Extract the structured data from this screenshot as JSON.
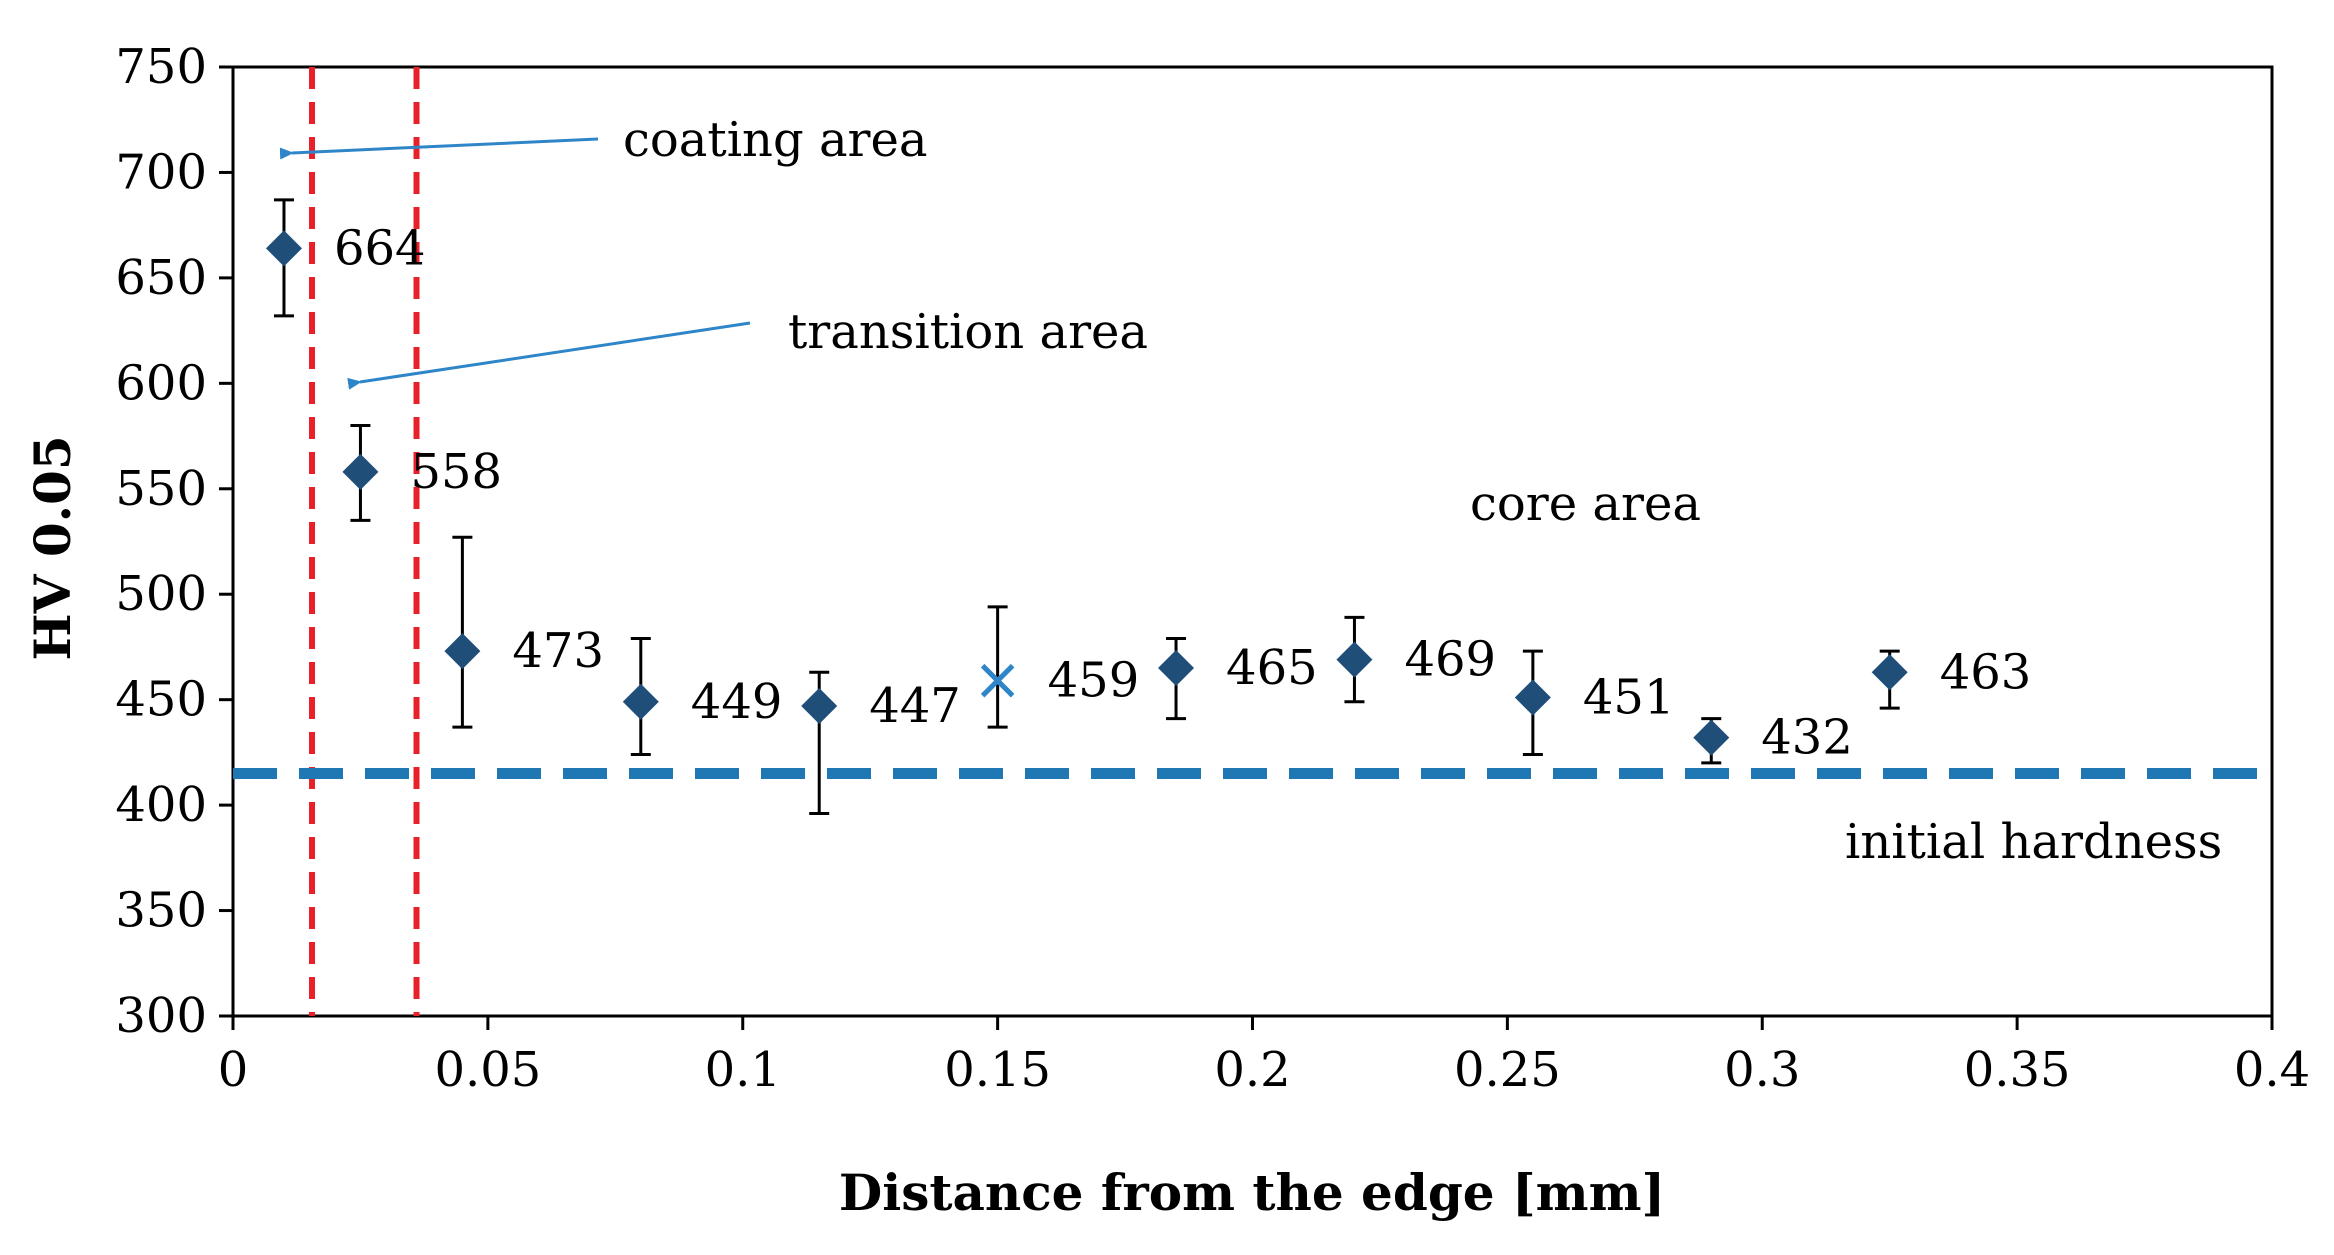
{
  "chart_data": {
    "type": "scatter",
    "xlabel": "Distance from the edge [mm]",
    "ylabel": "HV 0.05",
    "xlim": [
      0,
      0.4
    ],
    "ylim": [
      300,
      750
    ],
    "x_ticks": [
      0,
      0.05,
      0.1,
      0.15,
      0.2,
      0.25,
      0.3,
      0.35,
      0.4
    ],
    "x_tick_labels": [
      "0",
      "0.05",
      "0.1",
      "0.15",
      "0.2",
      "0.25",
      "0.3",
      "0.35",
      "0.4"
    ],
    "y_ticks": [
      300,
      350,
      400,
      450,
      500,
      550,
      600,
      650,
      700,
      750
    ],
    "y_tick_labels": [
      "300",
      "350",
      "400",
      "450",
      "500",
      "550",
      "600",
      "650",
      "700",
      "750"
    ],
    "grid": false,
    "series": [
      {
        "name": "HV 0.05",
        "marker": "diamond",
        "color": "#1F4E79",
        "points": [
          {
            "x": 0.01,
            "y": 664,
            "low": 632,
            "high": 687,
            "label": "664"
          },
          {
            "x": 0.025,
            "y": 558,
            "low": 535,
            "high": 580,
            "label": "558"
          },
          {
            "x": 0.045,
            "y": 473,
            "low": 437,
            "high": 527,
            "label": "473"
          },
          {
            "x": 0.08,
            "y": 449,
            "low": 424,
            "high": 479,
            "label": "449"
          },
          {
            "x": 0.115,
            "y": 447,
            "low": 396,
            "high": 463,
            "label": "447"
          },
          {
            "x": 0.15,
            "y": 459,
            "low": 437,
            "high": 494,
            "label": "459",
            "marker": "x"
          },
          {
            "x": 0.185,
            "y": 465,
            "low": 441,
            "high": 479,
            "label": "465"
          },
          {
            "x": 0.22,
            "y": 469,
            "low": 449,
            "high": 489,
            "label": "469"
          },
          {
            "x": 0.255,
            "y": 451,
            "low": 424,
            "high": 473,
            "label": "451"
          },
          {
            "x": 0.29,
            "y": 432,
            "low": 420,
            "high": 441,
            "label": "432"
          },
          {
            "x": 0.325,
            "y": 463,
            "low": 446,
            "high": 473,
            "label": "463"
          }
        ]
      }
    ],
    "reference_lines": [
      {
        "orientation": "vertical",
        "x": 0.0155,
        "style": "dashed",
        "color": "#E8202A"
      },
      {
        "orientation": "vertical",
        "x": 0.036,
        "style": "dashed",
        "color": "#E8202A"
      },
      {
        "orientation": "horizontal",
        "y": 415,
        "style": "dashed",
        "color": "#1F77B4",
        "label": "initial hardness"
      }
    ],
    "annotations": [
      {
        "text": "coating area",
        "arrow": true,
        "arrow_to": {
          "x": 0.01,
          "y": 708
        }
      },
      {
        "text": "transition area",
        "arrow": true,
        "arrow_to": {
          "x": 0.024,
          "y": 600
        }
      },
      {
        "text": "core area",
        "arrow": false
      },
      {
        "text": "initial hardness",
        "arrow": false
      }
    ]
  }
}
